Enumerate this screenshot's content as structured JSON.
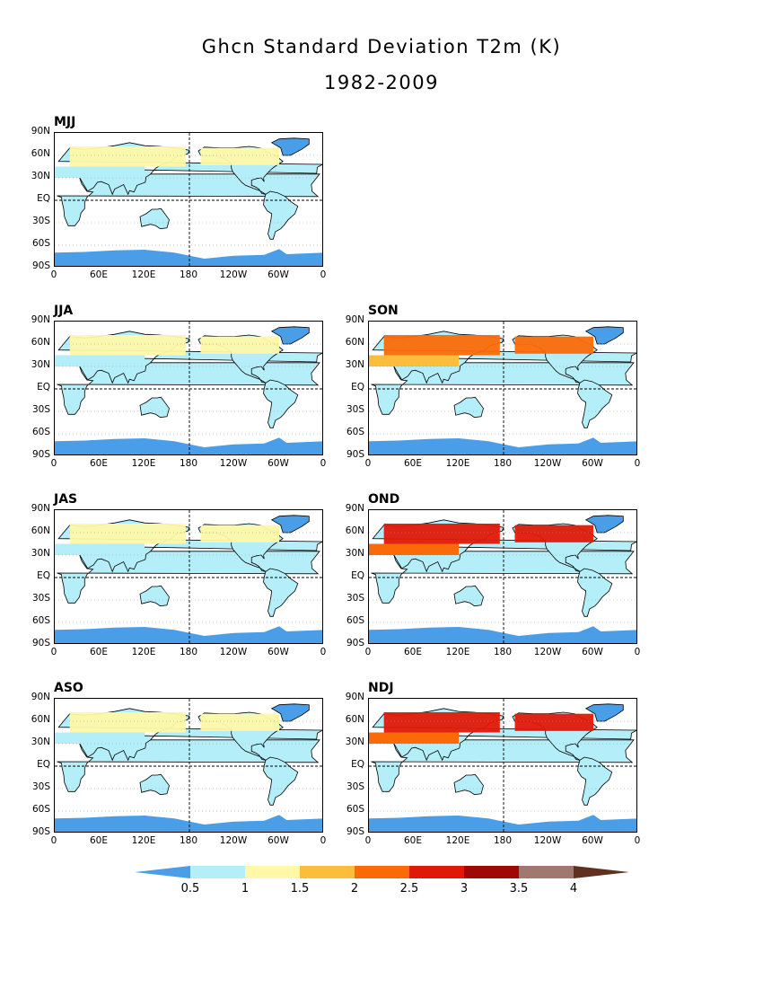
{
  "title_line1": "Ghcn Standard Deviation T2m (K)",
  "title_line2": "1982-2009",
  "lat_labels": [
    "90N",
    "60N",
    "30N",
    "EQ",
    "30S",
    "60S",
    "90S"
  ],
  "lon_labels": [
    "0",
    "60E",
    "120E",
    "180",
    "120W",
    "60W",
    "0"
  ],
  "colors": {
    "lt_0.5": "#4a9ee8",
    "0.5_1": "#b4eef8",
    "1_1.5": "#fef8a8",
    "1.5_2": "#fbbe3c",
    "2_2.5": "#fb6a08",
    "2.5_3": "#e01808",
    "3_3.5": "#a00808",
    "3.5_4": "#a07870",
    "gt_4": "#603020"
  },
  "panels": [
    {
      "label": "MJJ",
      "high_lat_level": 1.2
    },
    {
      "label": "JJA",
      "high_lat_level": 1.1
    },
    {
      "label": "SON",
      "high_lat_level": 2.3
    },
    {
      "label": "JAS",
      "high_lat_level": 1.1
    },
    {
      "label": "OND",
      "high_lat_level": 2.6
    },
    {
      "label": "ASO",
      "high_lat_level": 1.4
    },
    {
      "label": "NDJ",
      "high_lat_level": 2.9
    }
  ],
  "colorbar": {
    "ticks": [
      "0.5",
      "1",
      "1.5",
      "2",
      "2.5",
      "3",
      "3.5",
      "4"
    ],
    "colors": [
      "#4a9ee8",
      "#b4eef8",
      "#fef8a8",
      "#fbbe3c",
      "#fb6a08",
      "#e01808",
      "#a00808",
      "#a07870",
      "#603020"
    ]
  }
}
